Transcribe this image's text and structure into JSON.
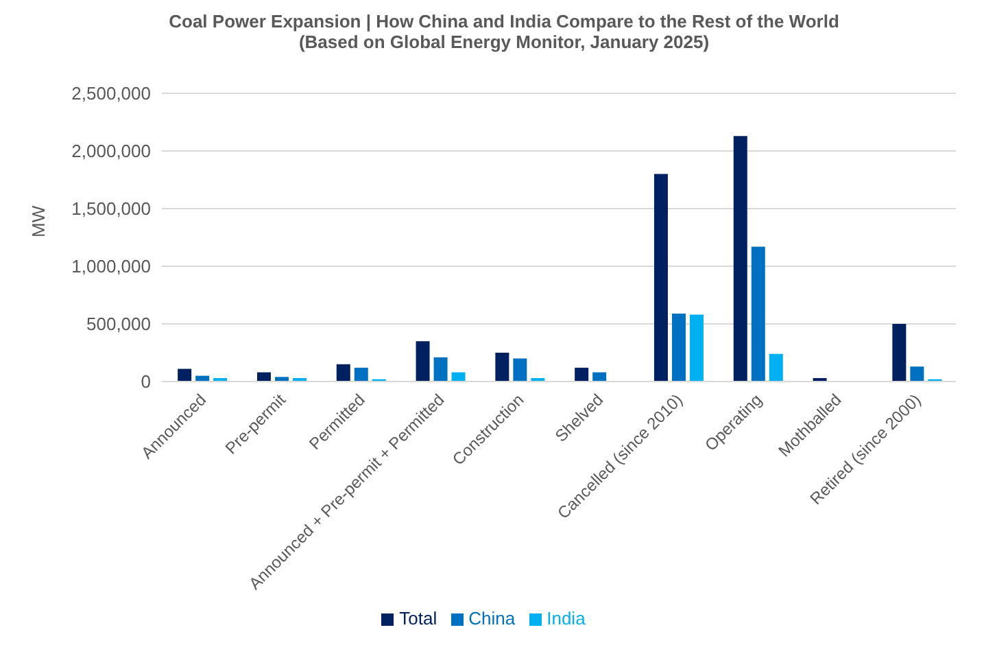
{
  "chart_data": {
    "type": "bar",
    "title": "Coal Power Expansion | How China and India Compare to the Rest of the World",
    "subtitle": "(Based on Global Energy Monitor, January 2025)",
    "ylabel": "MW",
    "categories": [
      "Announced",
      "Pre-permit",
      "Permitted",
      "Announced + Pre-permit + Permitted",
      "Construction",
      "Shelved",
      "Cancelled (since 2010)",
      "Operating",
      "Mothballed",
      "Retired (since 2000)"
    ],
    "series": [
      {
        "name": "Total",
        "color": "#002060",
        "values": [
          110000,
          80000,
          150000,
          350000,
          250000,
          120000,
          1800000,
          2130000,
          30000,
          500000
        ]
      },
      {
        "name": "China",
        "color": "#0070c0",
        "values": [
          50000,
          40000,
          120000,
          210000,
          200000,
          80000,
          590000,
          1170000,
          0,
          130000
        ]
      },
      {
        "name": "India",
        "color": "#00b0f0",
        "values": [
          30000,
          30000,
          20000,
          80000,
          30000,
          0,
          580000,
          240000,
          0,
          20000
        ]
      }
    ],
    "ylim": [
      0,
      2500000
    ],
    "yticks": [
      0,
      {
        "value": 500000,
        "label": "500,000"
      },
      {
        "value": 1000000,
        "label": "1,000,000"
      },
      {
        "value": 1500000,
        "label": "1,500,000"
      },
      {
        "value": 2000000,
        "label": "2,000,000"
      },
      {
        "value": 2500000,
        "label": "2,500,000"
      }
    ],
    "grid": "y",
    "legend": "bottom"
  }
}
